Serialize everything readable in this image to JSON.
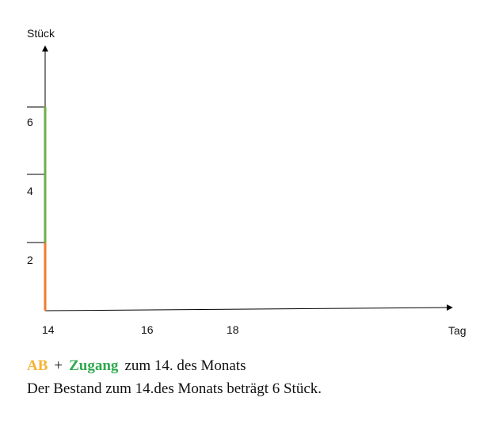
{
  "chart_data": {
    "type": "line",
    "xlabel": "Tag",
    "ylabel": "Stück",
    "x_ticks": [
      "14",
      "16",
      "18"
    ],
    "y_ticks": [
      "2",
      "4",
      "6"
    ],
    "xlim": [
      14,
      27
    ],
    "ylim": [
      0,
      8
    ],
    "grid": false,
    "series": [
      {
        "x": [
          14,
          14
        ],
        "y": [
          0,
          2
        ],
        "color": "#ed7d31"
      },
      {
        "x": [
          14,
          14
        ],
        "y": [
          2,
          6
        ],
        "color": "#70ad47"
      }
    ]
  },
  "caption": {
    "ab": "AB",
    "plus": "+",
    "zugang": "Zugang",
    "rest": "zum 14. des Monats",
    "line2": "Der Bestand zum 14.des Monats beträgt 6 Stück."
  },
  "colors": {
    "ab": "#f5b335",
    "zugang": "#2eaa4f",
    "axis": "#000000"
  }
}
